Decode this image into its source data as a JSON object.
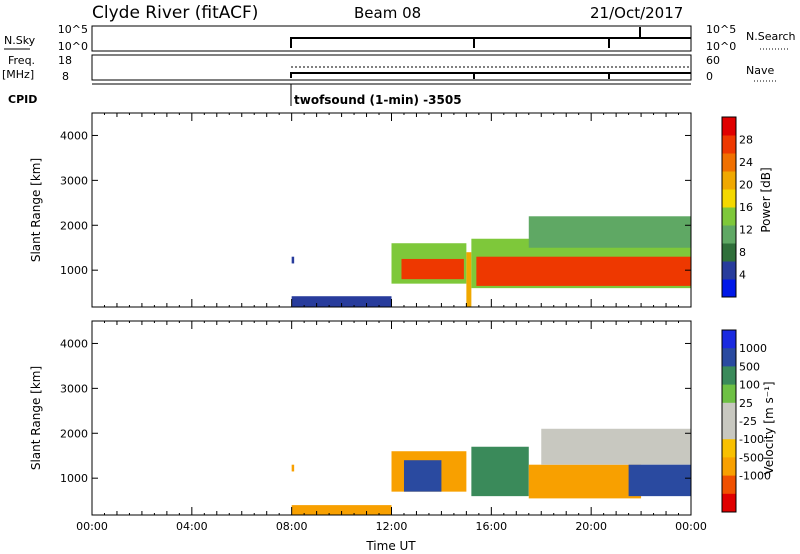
{
  "header": {
    "title": "Clyde River (fitACF)",
    "beam": "Beam 08",
    "date": "21/Oct/2017"
  },
  "panels": {
    "nsky_label": "N.Sky",
    "nsky_ticks": [
      "10^5",
      "10^0"
    ],
    "nsearch_label": "N.Search",
    "nsearch_ticks": [
      "10^5",
      "10^0"
    ],
    "freq_label": "Freq.",
    "freq_unit": "[MHz]",
    "freq_ticks": [
      "18",
      "8"
    ],
    "nave_label": "Nave",
    "nave_ticks": [
      "60",
      "0"
    ],
    "cpid_label": "CPID",
    "cpid_text": "twofsound (1-min) -3505"
  },
  "colors": {
    "power": [
      "#0018e8",
      "#283c9c",
      "#2f6f3a",
      "#5fa864",
      "#7ec83a",
      "#f4d800",
      "#f0a800",
      "#f07000",
      "#ee3800",
      "#e00000"
    ],
    "velocity": [
      "#e00000",
      "#f05000",
      "#f8a000",
      "#f8c000",
      "#c8c8c0",
      "#c8c8c0",
      "#6ec044",
      "#3a8a5a",
      "#2a4aa0",
      "#1a2ae0"
    ]
  },
  "chart_data": [
    {
      "type": "heatmap",
      "name": "power",
      "ylabel": "Slant Range [km]",
      "ylim": [
        180,
        4500
      ],
      "yticks": [
        1000,
        2000,
        3000,
        4000
      ],
      "xlim": [
        0,
        24
      ],
      "xticks": [
        "00:00",
        "04:00",
        "08:00",
        "12:00",
        "16:00",
        "20:00",
        "00:00"
      ],
      "colorbar": {
        "label": "Power [dB]",
        "levels": [
          4,
          8,
          12,
          16,
          20,
          24,
          28
        ],
        "range": [
          0,
          32
        ]
      },
      "cells": [
        {
          "t": [
            8.0,
            8.1
          ],
          "r": [
            1150,
            1300
          ],
          "v": 6
        },
        {
          "t": [
            8.0,
            12.0
          ],
          "r": [
            180,
            420
          ],
          "v": 6
        },
        {
          "t": [
            12.0,
            15.0
          ],
          "r": [
            700,
            1600
          ],
          "v": 14
        },
        {
          "t": [
            12.4,
            14.9
          ],
          "r": [
            800,
            1250
          ],
          "v": 26
        },
        {
          "t": [
            15.0,
            15.2
          ],
          "r": [
            180,
            1400
          ],
          "v": 22
        },
        {
          "t": [
            15.2,
            24.0
          ],
          "r": [
            600,
            1700
          ],
          "v": 14
        },
        {
          "t": [
            15.4,
            24.0
          ],
          "r": [
            650,
            1300
          ],
          "v": 28
        },
        {
          "t": [
            17.5,
            24.0
          ],
          "r": [
            1500,
            2200
          ],
          "v": 10
        }
      ]
    },
    {
      "type": "heatmap",
      "name": "velocity",
      "ylabel": "Slant Range [km]",
      "xlabel": "Time UT",
      "ylim": [
        180,
        4500
      ],
      "yticks": [
        1000,
        2000,
        3000,
        4000
      ],
      "xlim": [
        0,
        24
      ],
      "xticks": [
        "00:00",
        "04:00",
        "08:00",
        "12:00",
        "16:00",
        "20:00",
        "00:00"
      ],
      "colorbar": {
        "label": "Velocity [m s⁻¹]",
        "levels": [
          "1000",
          "500",
          "100",
          "25",
          "-25",
          "-100",
          "-500",
          "-1000"
        ]
      },
      "cells": [
        {
          "t": [
            8.0,
            8.1
          ],
          "r": [
            1150,
            1300
          ],
          "v": -100
        },
        {
          "t": [
            8.0,
            12.0
          ],
          "r": [
            180,
            400
          ],
          "v": -100
        },
        {
          "t": [
            12.0,
            15.0
          ],
          "r": [
            700,
            1600
          ],
          "v": -200
        },
        {
          "t": [
            12.5,
            14.0
          ],
          "r": [
            700,
            1400
          ],
          "v": 600
        },
        {
          "t": [
            15.2,
            17.5
          ],
          "r": [
            600,
            1700
          ],
          "v": 150
        },
        {
          "t": [
            17.5,
            22.0
          ],
          "r": [
            550,
            1300
          ],
          "v": -150
        },
        {
          "t": [
            18.0,
            24.0
          ],
          "r": [
            1300,
            2100
          ],
          "v": 0
        },
        {
          "t": [
            21.5,
            24.0
          ],
          "r": [
            600,
            1300
          ],
          "v": 800
        }
      ]
    }
  ]
}
